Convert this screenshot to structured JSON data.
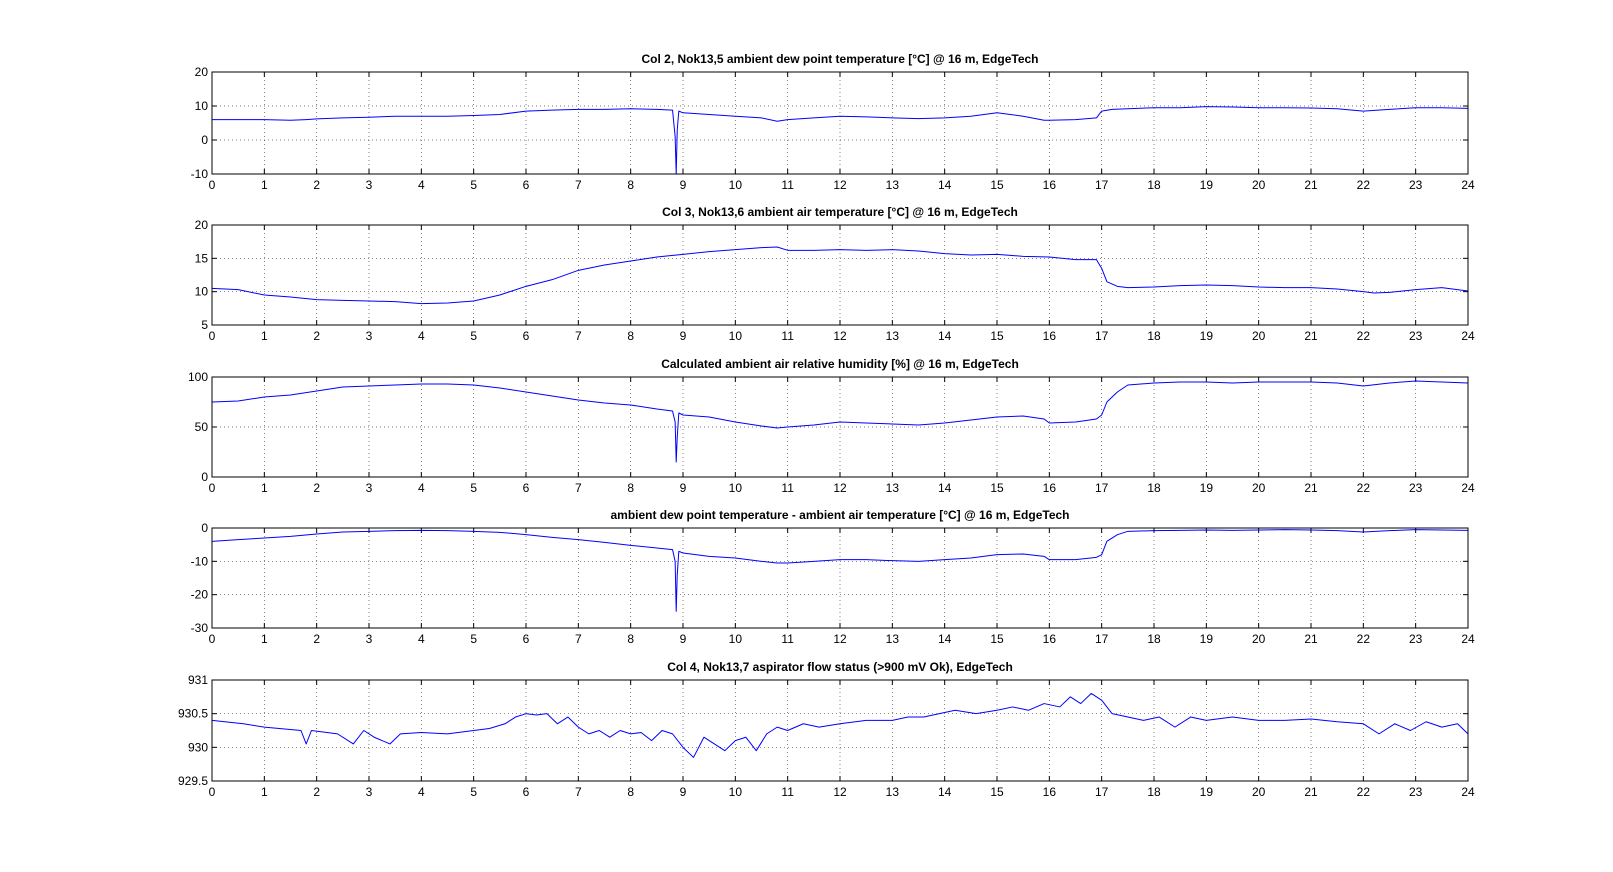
{
  "figure": {
    "background": "#ffffff",
    "line_color": "#0000ff"
  },
  "chart_data": [
    {
      "type": "line",
      "title": "Col 2, Nok13,5  ambient dew point temperature [°C] @ 16 m, EdgeTech",
      "xlabel": "",
      "ylabel": "",
      "xlim": [
        0,
        24
      ],
      "ylim": [
        -10,
        20
      ],
      "xticks": [
        0,
        1,
        2,
        3,
        4,
        5,
        6,
        7,
        8,
        9,
        10,
        11,
        12,
        13,
        14,
        15,
        16,
        17,
        18,
        19,
        20,
        21,
        22,
        23,
        24
      ],
      "yticks": [
        -10,
        0,
        10,
        20
      ],
      "ytick_labels": [
        "-10",
        "0",
        "10",
        "20"
      ],
      "grid": true,
      "legend": "none",
      "series": [
        {
          "x": [
            0,
            0.5,
            1,
            1.5,
            1.8,
            2,
            2.5,
            3,
            3.5,
            4,
            4.5,
            5,
            5.5,
            6,
            6.5,
            7,
            7.5,
            8,
            8.5,
            8.8,
            8.85,
            8.87,
            8.89,
            8.92,
            9,
            9.5,
            10,
            10.5,
            10.8,
            11,
            11.5,
            12,
            12.5,
            13,
            13.5,
            14,
            14.5,
            15,
            15.5,
            15.9,
            16,
            16.5,
            16.9,
            17,
            17.2,
            17.5,
            18,
            18.5,
            19,
            19.5,
            20,
            20.5,
            21,
            21.5,
            22,
            22.5,
            23,
            23.5,
            24
          ],
          "y": [
            6,
            6,
            6,
            5.8,
            6,
            6.2,
            6.5,
            6.7,
            7,
            7,
            7,
            7.2,
            7.5,
            8.5,
            8.8,
            9,
            9,
            9.2,
            9,
            8.8,
            1,
            -10,
            3,
            8.5,
            8,
            7.5,
            7,
            6.5,
            5.5,
            6,
            6.5,
            7,
            6.8,
            6.5,
            6.3,
            6.5,
            7,
            8,
            7,
            5.8,
            5.8,
            6,
            6.5,
            8.5,
            9,
            9.2,
            9.5,
            9.5,
            9.8,
            9.7,
            9.5,
            9.5,
            9.4,
            9.2,
            8.5,
            9,
            9.5,
            9.5,
            9.3
          ]
        }
      ]
    },
    {
      "type": "line",
      "title": "Col 3, Nok13,6  ambient air temperature [°C] @ 16 m, EdgeTech",
      "xlabel": "",
      "ylabel": "",
      "xlim": [
        0,
        24
      ],
      "ylim": [
        5,
        20
      ],
      "xticks": [
        0,
        1,
        2,
        3,
        4,
        5,
        6,
        7,
        8,
        9,
        10,
        11,
        12,
        13,
        14,
        15,
        16,
        17,
        18,
        19,
        20,
        21,
        22,
        23,
        24
      ],
      "yticks": [
        5,
        10,
        15,
        20
      ],
      "ytick_labels": [
        "5",
        "10",
        "15",
        "20"
      ],
      "grid": true,
      "legend": "none",
      "series": [
        {
          "x": [
            0,
            0.5,
            1,
            1.5,
            2,
            2.5,
            3,
            3.5,
            4,
            4.5,
            5,
            5.5,
            6,
            6.5,
            7,
            7.5,
            8,
            8.5,
            9,
            9.5,
            10,
            10.5,
            10.8,
            11,
            11.5,
            12,
            12.5,
            13,
            13.5,
            14,
            14.5,
            15,
            15.5,
            16,
            16.5,
            16.9,
            17,
            17.1,
            17.3,
            17.5,
            18,
            18.5,
            19,
            19.5,
            20,
            20.5,
            21,
            21.5,
            22,
            22.2,
            22.5,
            23,
            23.5,
            24
          ],
          "y": [
            10.5,
            10.3,
            9.5,
            9.2,
            8.8,
            8.7,
            8.6,
            8.5,
            8.2,
            8.3,
            8.6,
            9.5,
            10.8,
            11.8,
            13.2,
            14,
            14.6,
            15.2,
            15.6,
            16,
            16.3,
            16.6,
            16.7,
            16.2,
            16.2,
            16.3,
            16.2,
            16.3,
            16.1,
            15.7,
            15.5,
            15.6,
            15.3,
            15.2,
            14.8,
            14.8,
            13.5,
            11.5,
            10.8,
            10.6,
            10.7,
            10.9,
            11,
            10.9,
            10.7,
            10.6,
            10.6,
            10.4,
            10,
            9.8,
            9.9,
            10.3,
            10.6,
            10.1
          ]
        }
      ]
    },
    {
      "type": "line",
      "title": "Calculated  ambient air relative humidity [%] @ 16 m, EdgeTech",
      "xlabel": "",
      "ylabel": "",
      "xlim": [
        0,
        24
      ],
      "ylim": [
        0,
        100
      ],
      "xticks": [
        0,
        1,
        2,
        3,
        4,
        5,
        6,
        7,
        8,
        9,
        10,
        11,
        12,
        13,
        14,
        15,
        16,
        17,
        18,
        19,
        20,
        21,
        22,
        23,
        24
      ],
      "yticks": [
        0,
        50,
        100
      ],
      "ytick_labels": [
        "0",
        "50",
        "100"
      ],
      "grid": true,
      "legend": "none",
      "series": [
        {
          "x": [
            0,
            0.5,
            1,
            1.5,
            2,
            2.5,
            3,
            3.5,
            4,
            4.5,
            5,
            5.5,
            6,
            6.5,
            7,
            7.5,
            8,
            8.5,
            8.8,
            8.85,
            8.87,
            8.89,
            8.92,
            9,
            9.5,
            10,
            10.5,
            10.8,
            11,
            11.5,
            12,
            12.5,
            13,
            13.5,
            14,
            14.5,
            15,
            15.5,
            15.9,
            16,
            16.5,
            16.9,
            17,
            17.1,
            17.3,
            17.5,
            18,
            18.5,
            19,
            19.5,
            20,
            20.5,
            21,
            21.5,
            22,
            22.5,
            23,
            23.5,
            24
          ],
          "y": [
            75,
            76,
            80,
            82,
            86,
            90,
            91,
            92,
            93,
            93,
            92,
            89,
            85,
            81,
            77,
            74,
            72,
            68,
            66,
            55,
            15,
            40,
            64,
            62,
            60,
            55,
            51,
            49,
            50,
            52,
            55,
            54,
            53,
            52,
            54,
            57,
            60,
            61,
            58,
            54,
            55,
            58,
            62,
            75,
            85,
            92,
            94,
            95,
            95,
            94,
            95,
            95,
            95,
            94,
            91,
            94,
            96,
            95,
            94
          ]
        }
      ]
    },
    {
      "type": "line",
      "title": "ambient dew point temperature - ambient air temperature [°C] @ 16 m, EdgeTech",
      "xlabel": "",
      "ylabel": "",
      "xlim": [
        0,
        24
      ],
      "ylim": [
        -30,
        0
      ],
      "xticks": [
        0,
        1,
        2,
        3,
        4,
        5,
        6,
        7,
        8,
        9,
        10,
        11,
        12,
        13,
        14,
        15,
        16,
        17,
        18,
        19,
        20,
        21,
        22,
        23,
        24
      ],
      "yticks": [
        -30,
        -20,
        -10,
        0
      ],
      "ytick_labels": [
        "-30",
        "-20",
        "-10",
        "0"
      ],
      "grid": true,
      "legend": "none",
      "series": [
        {
          "x": [
            0,
            0.5,
            1,
            1.5,
            2,
            2.5,
            3,
            3.5,
            4,
            4.5,
            5,
            5.5,
            6,
            6.5,
            7,
            7.5,
            8,
            8.5,
            8.8,
            8.85,
            8.87,
            8.89,
            8.92,
            9,
            9.5,
            10,
            10.5,
            10.8,
            11,
            11.5,
            12,
            12.5,
            13,
            13.5,
            14,
            14.5,
            15,
            15.5,
            15.9,
            16,
            16.5,
            16.9,
            17,
            17.1,
            17.3,
            17.5,
            18,
            18.5,
            19,
            19.5,
            20,
            20.5,
            21,
            21.5,
            22,
            22.5,
            23,
            23.5,
            24
          ],
          "y": [
            -4,
            -3.5,
            -3,
            -2.5,
            -1.8,
            -1.2,
            -1,
            -0.8,
            -0.7,
            -0.8,
            -1,
            -1.3,
            -2,
            -2.8,
            -3.5,
            -4.3,
            -5.2,
            -6,
            -6.5,
            -10,
            -25,
            -14,
            -7,
            -7.5,
            -8.5,
            -9,
            -10,
            -10.5,
            -10.5,
            -10,
            -9.5,
            -9.5,
            -9.8,
            -10,
            -9.5,
            -9,
            -8,
            -7.8,
            -8.5,
            -9.5,
            -9.5,
            -8.8,
            -8,
            -4,
            -2,
            -1,
            -0.8,
            -0.7,
            -0.6,
            -0.7,
            -0.6,
            -0.5,
            -0.6,
            -0.8,
            -1.2,
            -0.8,
            -0.5,
            -0.6,
            -0.7
          ]
        }
      ]
    },
    {
      "type": "line",
      "title": "Col 4, Nok13,7  aspirator flow status (>900 mV Ok), EdgeTech",
      "xlabel": "",
      "ylabel": "",
      "xlim": [
        0,
        24
      ],
      "ylim": [
        929.5,
        931
      ],
      "xticks": [
        0,
        1,
        2,
        3,
        4,
        5,
        6,
        7,
        8,
        9,
        10,
        11,
        12,
        13,
        14,
        15,
        16,
        17,
        18,
        19,
        20,
        21,
        22,
        23,
        24
      ],
      "yticks": [
        929.5,
        930,
        930.5,
        931
      ],
      "ytick_labels": [
        "929.5",
        "930",
        "930.5",
        "931"
      ],
      "grid": true,
      "legend": "none",
      "series": [
        {
          "x": [
            0,
            0.6,
            1.0,
            1.7,
            1.8,
            1.9,
            2.4,
            2.7,
            2.9,
            3.1,
            3.4,
            3.6,
            4.0,
            4.5,
            5.0,
            5.3,
            5.6,
            5.8,
            6.0,
            6.2,
            6.4,
            6.6,
            6.8,
            7.0,
            7.2,
            7.4,
            7.6,
            7.8,
            8.0,
            8.2,
            8.4,
            8.6,
            8.8,
            9.0,
            9.2,
            9.4,
            9.6,
            9.8,
            10.0,
            10.2,
            10.4,
            10.6,
            10.8,
            11.0,
            11.3,
            11.6,
            12.0,
            12.5,
            13.0,
            13.3,
            13.6,
            13.9,
            14.2,
            14.6,
            15.0,
            15.3,
            15.6,
            15.9,
            16.2,
            16.4,
            16.6,
            16.8,
            17.0,
            17.2,
            17.5,
            17.8,
            18.1,
            18.4,
            18.7,
            19.0,
            19.5,
            20.0,
            20.5,
            21.0,
            21.5,
            22.0,
            22.3,
            22.6,
            22.9,
            23.2,
            23.5,
            23.8,
            24.0
          ],
          "y": [
            930.4,
            930.35,
            930.3,
            930.25,
            930.05,
            930.25,
            930.2,
            930.05,
            930.25,
            930.15,
            930.05,
            930.2,
            930.22,
            930.2,
            930.25,
            930.28,
            930.35,
            930.45,
            930.5,
            930.48,
            930.5,
            930.35,
            930.45,
            930.3,
            930.2,
            930.25,
            930.15,
            930.25,
            930.2,
            930.22,
            930.1,
            930.25,
            930.2,
            930.0,
            929.85,
            930.15,
            930.05,
            929.95,
            930.1,
            930.15,
            929.95,
            930.2,
            930.3,
            930.25,
            930.35,
            930.3,
            930.35,
            930.4,
            930.4,
            930.45,
            930.45,
            930.5,
            930.55,
            930.5,
            930.55,
            930.6,
            930.55,
            930.65,
            930.6,
            930.75,
            930.65,
            930.8,
            930.7,
            930.5,
            930.45,
            930.4,
            930.45,
            930.3,
            930.45,
            930.4,
            930.45,
            930.4,
            930.4,
            930.42,
            930.38,
            930.35,
            930.2,
            930.35,
            930.25,
            930.38,
            930.3,
            930.35,
            930.2
          ]
        }
      ]
    }
  ]
}
